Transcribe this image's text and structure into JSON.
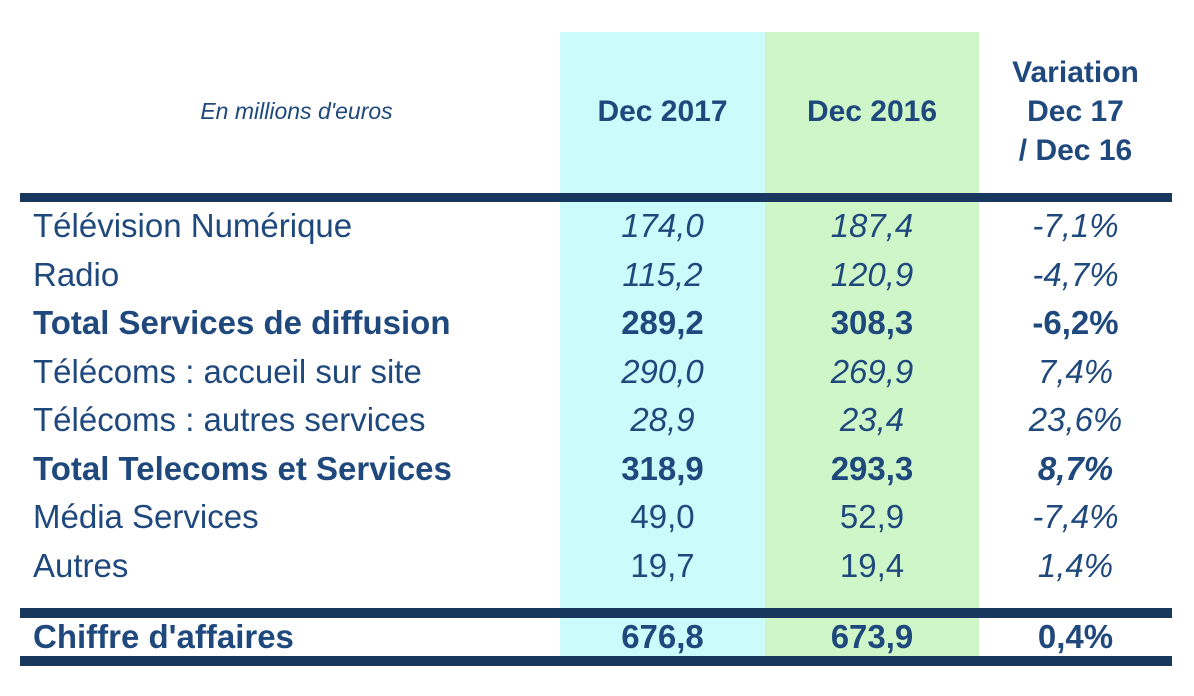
{
  "table": {
    "unit_label": "En millions d'euros",
    "columns": {
      "dec2017": "Dec 2017",
      "dec2016": "Dec 2016"
    },
    "variation_header": {
      "line1": "Variation",
      "line2": "Dec 17",
      "line3": "/ Dec 16"
    },
    "colors": {
      "dec2017_column_bg": "#CCFBFB",
      "dec2016_column_bg": "#CFF6C8",
      "text": "#1F497D",
      "divider": "#17375E"
    },
    "rows": [
      {
        "label": "Télévision Numérique",
        "dec2017": "174,0",
        "dec2016": "187,4",
        "variation": "-7,1%"
      },
      {
        "label": "Radio",
        "dec2017": "115,2",
        "dec2016": "120,9",
        "variation": "-4,7%"
      },
      {
        "label": "Total Services de diffusion",
        "dec2017": "289,2",
        "dec2016": "308,3",
        "variation": "-6,2%"
      },
      {
        "label": "Télécoms : accueil sur site",
        "dec2017": "290,0",
        "dec2016": "269,9",
        "variation": "7,4%"
      },
      {
        "label": "Télécoms : autres services",
        "dec2017": "28,9",
        "dec2016": "23,4",
        "variation": "23,6%"
      },
      {
        "label": "Total Telecoms et Services",
        "dec2017": "318,9",
        "dec2016": "293,3",
        "variation": "8,7%"
      },
      {
        "label": "Média Services",
        "dec2017": "49,0",
        "dec2016": "52,9",
        "variation": "-7,4%"
      },
      {
        "label": "Autres",
        "dec2017": "19,7",
        "dec2016": "19,4",
        "variation": "1,4%"
      }
    ],
    "total_row": {
      "label": "Chiffre d'affaires",
      "dec2017": "676,8",
      "dec2016": "673,9",
      "variation": "0,4%"
    }
  }
}
